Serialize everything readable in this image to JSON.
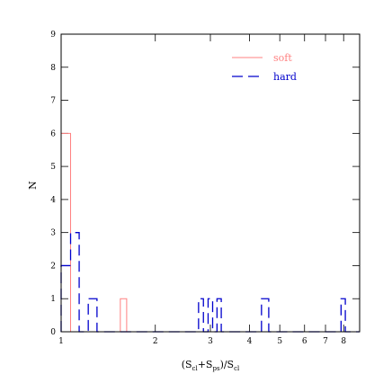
{
  "chart_data": {
    "type": "histogram",
    "xlabel_parts": {
      "s1": "(S",
      "sub1": "cl",
      "mid": "+S",
      "sub2": "ps",
      "s2": ")/S",
      "sub3": "cl"
    },
    "ylabel": "N",
    "x_scale": "log",
    "xlim": [
      1,
      9
    ],
    "ylim": [
      0,
      9
    ],
    "x_ticks": [
      1,
      2,
      3,
      4,
      5,
      6,
      7,
      8
    ],
    "y_ticks": [
      0,
      1,
      2,
      3,
      4,
      5,
      6,
      7,
      8,
      9
    ],
    "legend_position": "top-right",
    "series": [
      {
        "name": "soft",
        "color": "#ff8080",
        "dash": "solid",
        "edges": [
          1.0,
          1.072,
          1.142,
          1.221,
          1.302,
          1.38,
          1.45,
          1.546,
          1.62,
          1.69,
          1.76,
          1.84,
          1.92,
          2.0,
          2.1,
          2.2,
          2.3,
          2.4,
          2.5,
          2.62,
          2.75,
          2.9,
          3.05,
          3.2,
          3.37,
          3.55,
          3.74,
          3.94,
          4.15,
          4.37,
          4.61,
          4.86,
          5.12,
          5.4,
          5.69,
          6.0,
          6.33,
          6.68,
          7.05,
          7.44,
          7.85,
          8.28,
          8.74,
          9.0
        ],
        "counts": [
          6,
          0,
          0,
          0,
          0,
          0,
          0,
          1,
          0,
          0,
          0,
          0,
          0,
          0,
          0,
          0,
          0,
          0,
          0,
          0,
          0,
          0,
          0,
          0,
          0,
          0,
          0,
          0,
          0,
          0,
          0,
          0,
          0,
          0,
          0,
          0,
          0,
          0,
          0,
          0,
          0,
          0,
          0
        ]
      },
      {
        "name": "hard",
        "color": "#0000cc",
        "dash": "dashed",
        "edges": [
          1.0,
          1.072,
          1.142,
          1.221,
          1.302,
          1.38,
          1.45,
          1.546,
          1.62,
          1.69,
          1.76,
          1.84,
          1.92,
          2.0,
          2.1,
          2.2,
          2.3,
          2.4,
          2.5,
          2.62,
          2.75,
          2.85,
          2.95,
          3.05,
          3.15,
          3.25,
          3.37,
          3.55,
          3.74,
          3.94,
          4.15,
          4.37,
          4.61,
          4.86,
          5.12,
          5.4,
          5.69,
          6.0,
          6.33,
          6.68,
          7.05,
          7.44,
          7.85,
          8.1,
          8.5,
          9.0
        ],
        "counts": [
          2,
          3,
          0,
          1,
          0,
          0,
          0,
          0,
          0,
          0,
          0,
          0,
          0,
          0,
          0,
          0,
          0,
          0,
          0,
          0,
          1,
          0,
          1,
          0,
          1,
          0,
          0,
          0,
          0,
          0,
          0,
          1,
          0,
          0,
          0,
          0,
          0,
          0,
          0,
          0,
          0,
          0,
          1,
          0,
          0
        ]
      }
    ]
  }
}
